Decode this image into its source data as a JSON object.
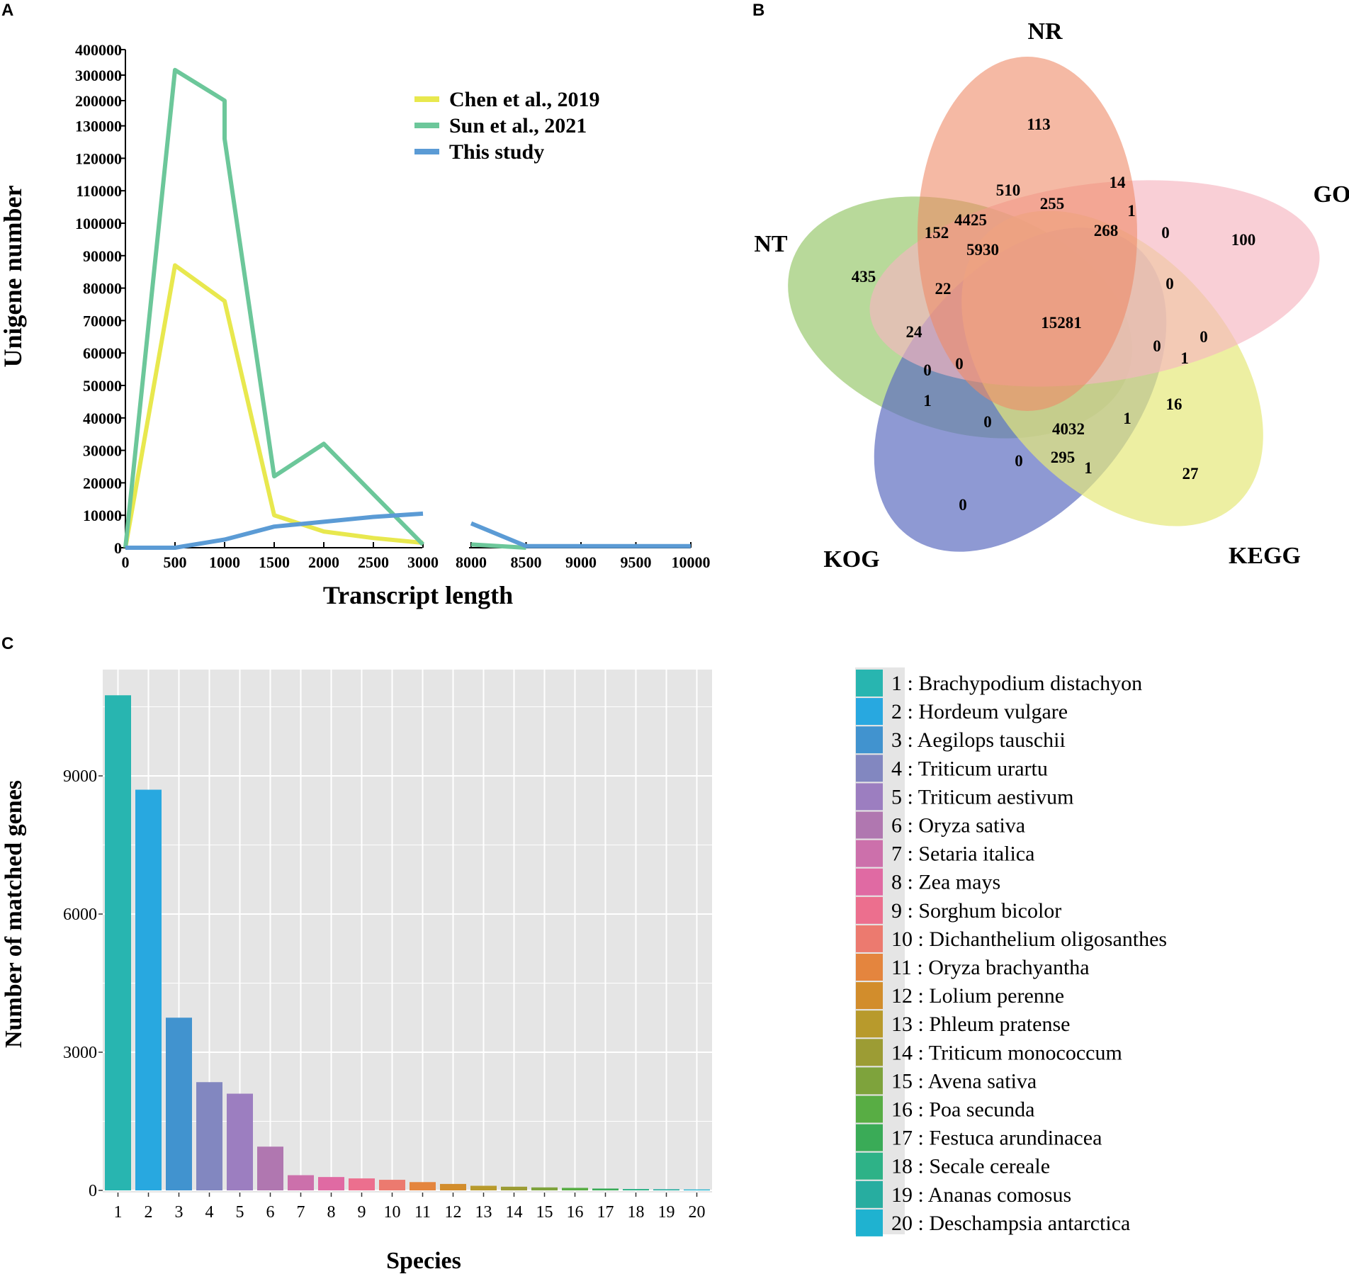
{
  "panels": {
    "a": "A",
    "b": "B",
    "c": "C"
  },
  "chart_data": [
    {
      "type": "line",
      "title": "",
      "xlabel": "Transcript length",
      "ylabel": "Unigene number",
      "x": [
        0,
        500,
        1000,
        1500,
        2000,
        2500,
        3000,
        8000,
        8500,
        9000,
        9500,
        10000
      ],
      "x_tick_labels": [
        "0",
        "500",
        "1000",
        "1500",
        "2000",
        "2500",
        "3000",
        "8000",
        "8500",
        "9000",
        "9500",
        "10000"
      ],
      "y_tick_labels": [
        "0",
        "10000",
        "20000",
        "30000",
        "40000",
        "50000",
        "60000",
        "70000",
        "80000",
        "90000",
        "100000",
        "110000",
        "120000",
        "130000",
        "200000",
        "300000",
        "400000"
      ],
      "axis_breaks": {
        "x": [
          3000,
          8000
        ],
        "y": [
          130000,
          400000
        ]
      },
      "legend": "top-right",
      "series": [
        {
          "name": "Chen et al., 2019",
          "color": "#e8e84e",
          "points": [
            [
              0,
              0
            ],
            [
              500,
              87000
            ],
            [
              1000,
              76000
            ],
            [
              1500,
              10000
            ],
            [
              2000,
              5000
            ],
            [
              2500,
              3000
            ],
            [
              3000,
              1500
            ]
          ]
        },
        {
          "name": "Sun et al., 2021",
          "color": "#6cc79a",
          "points": [
            [
              0,
              0
            ],
            [
              500,
              320000
            ],
            [
              1000,
              200000
            ],
            [
              1000,
              126000
            ],
            [
              1500,
              22000
            ],
            [
              2000,
              32000
            ],
            [
              3000,
              1000
            ],
            [
              8000,
              1000
            ],
            [
              8500,
              0
            ]
          ]
        },
        {
          "name": "This study",
          "color": "#5b9bd5",
          "points": [
            [
              0,
              0
            ],
            [
              500,
              0
            ],
            [
              1000,
              2500
            ],
            [
              1500,
              6500
            ],
            [
              2000,
              8000
            ],
            [
              2500,
              9500
            ],
            [
              3000,
              10500
            ],
            [
              8000,
              7500
            ],
            [
              8500,
              500
            ],
            [
              9000,
              500
            ],
            [
              9500,
              500
            ],
            [
              10000,
              500
            ]
          ]
        }
      ]
    },
    {
      "type": "venn",
      "sets": [
        {
          "name": "NR",
          "color": "#ee8a68"
        },
        {
          "name": "GO",
          "color": "#f6b6c0"
        },
        {
          "name": "KEGG",
          "color": "#e6e87a"
        },
        {
          "name": "KOG",
          "color": "#7480c6"
        },
        {
          "name": "NT",
          "color": "#a0cc78"
        }
      ],
      "counts": [
        "113",
        "510",
        "14",
        "255",
        "1",
        "4425",
        "152",
        "268",
        "0",
        "100",
        "5930",
        "435",
        "22",
        "0",
        "15281",
        "24",
        "0",
        "0",
        "0",
        "1",
        "0",
        "1",
        "16",
        "0",
        "1",
        "4032",
        "0",
        "295",
        "1",
        "27",
        "0"
      ]
    },
    {
      "type": "bar",
      "title": "",
      "xlabel": "Species",
      "ylabel": "Number of matched genes",
      "ylim": [
        0,
        11000
      ],
      "y_ticks": [
        0,
        3000,
        6000,
        9000
      ],
      "y_tick_labels": [
        "0",
        "3000",
        "6000",
        "9000"
      ],
      "categories": [
        "1",
        "2",
        "3",
        "4",
        "5",
        "6",
        "7",
        "8",
        "9",
        "10",
        "11",
        "12",
        "13",
        "14",
        "15",
        "16",
        "17",
        "18",
        "19",
        "20"
      ],
      "values": [
        10750,
        8700,
        3750,
        2350,
        2100,
        950,
        330,
        290,
        260,
        230,
        180,
        140,
        100,
        80,
        65,
        55,
        40,
        30,
        25,
        20
      ],
      "colors": [
        "#28b5b0",
        "#28a8e0",
        "#4193cf",
        "#8287c0",
        "#9c7ec0",
        "#b077b0",
        "#cc70ab",
        "#e06aa3",
        "#ec6f8e",
        "#ec7a6f",
        "#e4853e",
        "#d28d2c",
        "#b89a2c",
        "#9c9c34",
        "#7ea33c",
        "#58ad44",
        "#3aab57",
        "#2eb287",
        "#27ada0",
        "#1fb2d0"
      ],
      "legend": "right",
      "legend_entries": [
        "1 : Brachypodium distachyon",
        "2 : Hordeum vulgare",
        "3 : Aegilops tauschii",
        "4 : Triticum urartu",
        "5 : Triticum aestivum",
        "6 : Oryza sativa",
        "7 : Setaria italica",
        "8 : Zea mays",
        "9 : Sorghum bicolor",
        "10 : Dichanthelium oligosanthes",
        "11 : Oryza brachyantha",
        "12 : Lolium perenne",
        "13 : Phleum pratense",
        "14 : Triticum monococcum",
        "15 : Avena sativa",
        "16 : Poa secunda",
        "17 : Festuca arundinacea",
        "18 : Secale cereale",
        "19 : Ananas comosus",
        "20 : Deschampsia antarctica"
      ]
    }
  ]
}
